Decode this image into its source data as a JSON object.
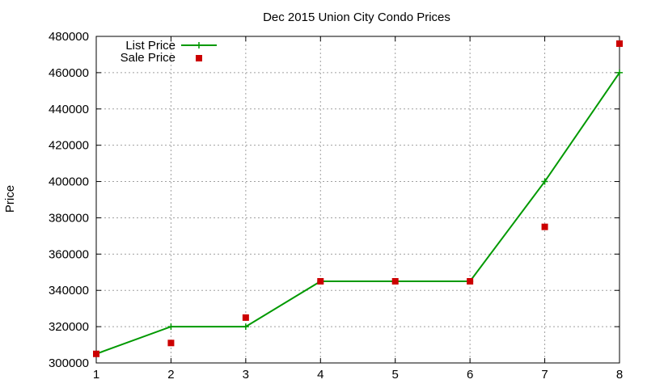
{
  "chart_data": {
    "type": "line",
    "title": "Dec 2015 Union City Condo Prices",
    "xlabel": "",
    "ylabel": "Price",
    "xlim": [
      1,
      8
    ],
    "ylim": [
      300000,
      480000
    ],
    "x_ticks": [
      "1",
      "2",
      "3",
      "4",
      "5",
      "6",
      "7",
      "8"
    ],
    "y_ticks": [
      "300000",
      "320000",
      "340000",
      "360000",
      "380000",
      "400000",
      "420000",
      "440000",
      "460000",
      "480000"
    ],
    "grid": true,
    "legend_position": "top-left",
    "series": [
      {
        "name": "List Price",
        "style": "line-with-plus-markers",
        "color": "#009900",
        "x": [
          1,
          2,
          3,
          4,
          5,
          6,
          7,
          8
        ],
        "values": [
          305000,
          320000,
          320000,
          345000,
          345000,
          345000,
          400000,
          460000
        ]
      },
      {
        "name": "Sale Price",
        "style": "square-markers",
        "color": "#cc0000",
        "x": [
          1,
          2,
          3,
          4,
          5,
          6,
          7,
          8
        ],
        "values": [
          305000,
          311000,
          325000,
          345000,
          345000,
          345000,
          375000,
          476000
        ]
      }
    ]
  }
}
